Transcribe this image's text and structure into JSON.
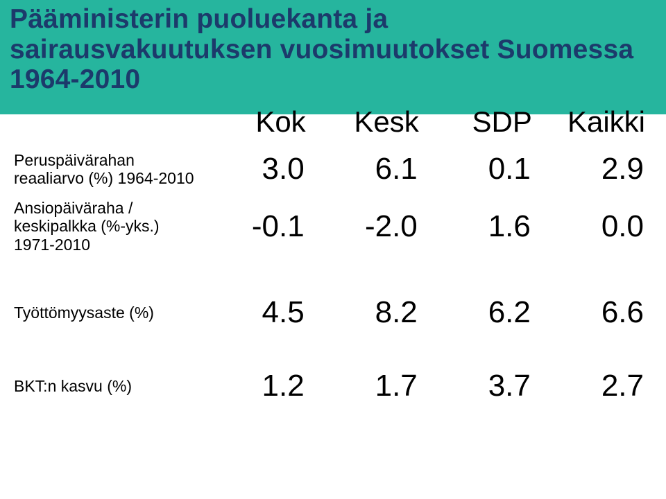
{
  "slide": {
    "title": "Pääministerin puoluekanta ja sairausvakuutuksen vuosimuutokset Suomessa 1964-2010",
    "title_color": "#1c3a6b",
    "title_background": "#26b59e",
    "title_fontsize": 39,
    "background_color": "#ffffff"
  },
  "table": {
    "type": "table",
    "columns": [
      "",
      "Kok",
      "Kesk",
      "SDP",
      "Kaikki"
    ],
    "col_widths_pct": [
      30,
      17.5,
      17.5,
      17.5,
      17.5
    ],
    "header_fontsize": 42,
    "label_fontsize": 23,
    "value_fontsize": 44,
    "text_color": "#000000",
    "rows": [
      {
        "label": "Peruspäivärahan reaaliarvo (%) 1964-2010",
        "values": [
          "3.0",
          "6.1",
          "0.1",
          "2.9"
        ]
      },
      {
        "label": "Ansiopäiväraha / keskipalkka (%-yks.) 1971-2010",
        "values": [
          "-0.1",
          "-2.0",
          "1.6",
          "0.0"
        ]
      },
      {
        "label": "Työttömyysaste (%)",
        "values": [
          "4.5",
          "8.2",
          "6.2",
          "6.6"
        ]
      },
      {
        "label": "BKT:n kasvu (%)",
        "values": [
          "1.2",
          "1.7",
          "3.7",
          "2.7"
        ]
      }
    ]
  }
}
